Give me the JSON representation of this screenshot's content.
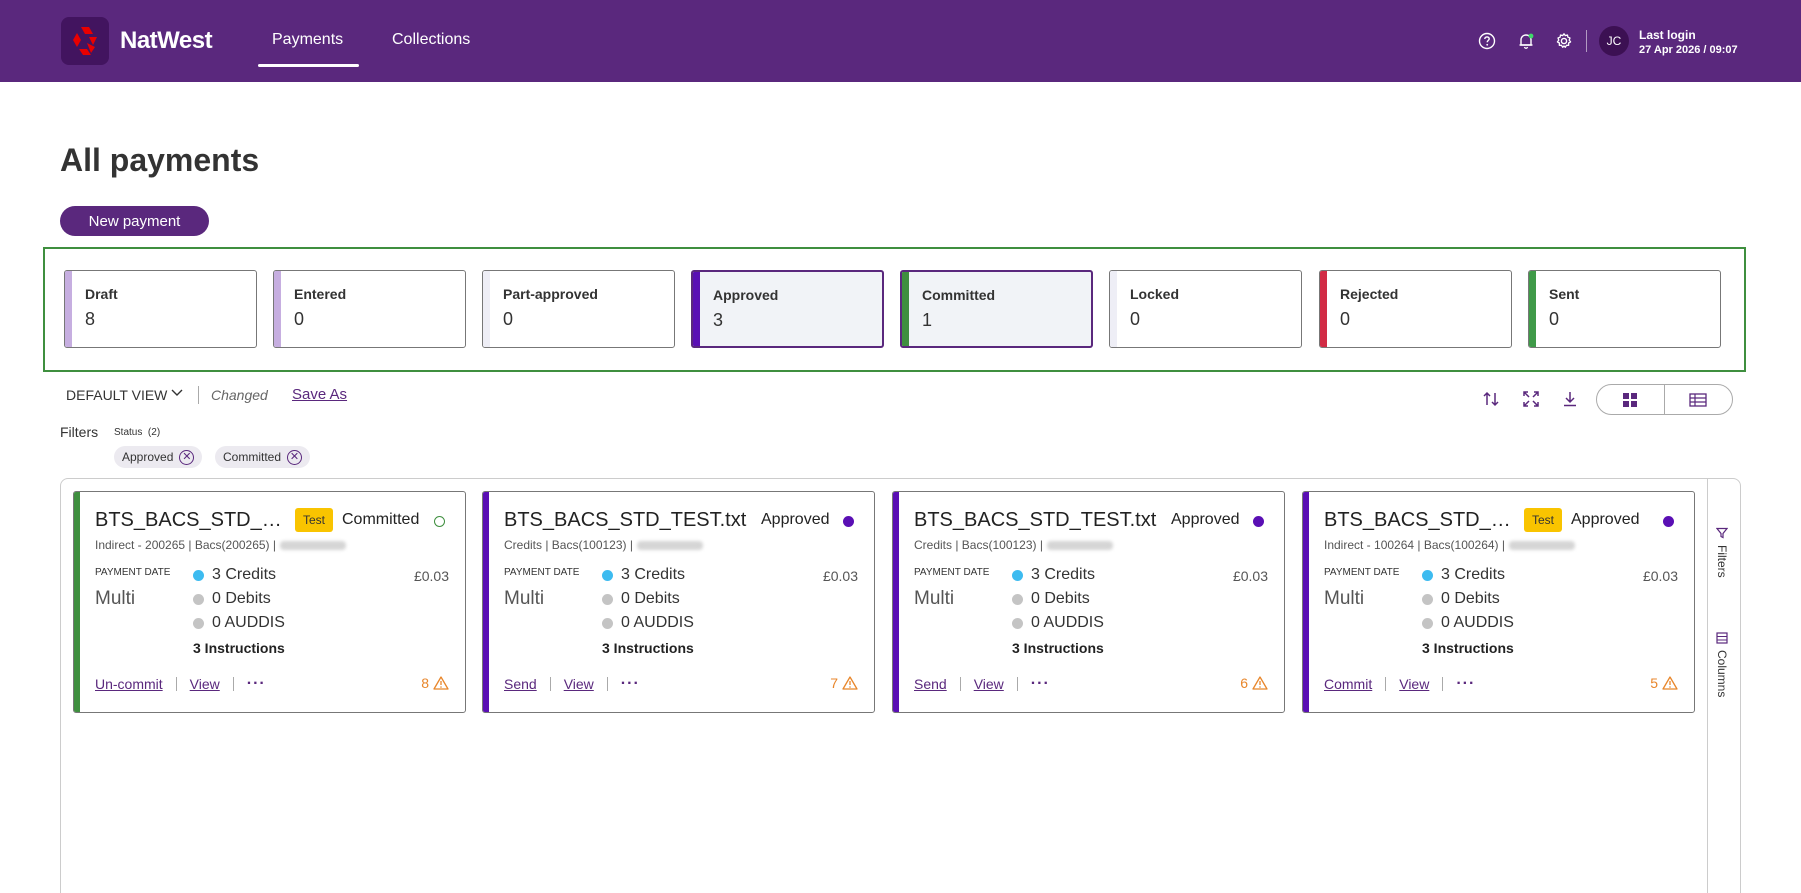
{
  "header": {
    "brand": "NatWest",
    "nav": [
      {
        "label": "Payments",
        "active": true
      },
      {
        "label": "Collections",
        "active": false
      }
    ],
    "icons": [
      "help-icon",
      "bell-icon",
      "gear-icon"
    ],
    "user_initials": "JC",
    "last_login_label": "Last login",
    "last_login_date": "27 Apr 2026 / 09:07",
    "bg_color": "#5a287d"
  },
  "page": {
    "title": "All payments",
    "new_payment_label": "New payment"
  },
  "status_cards": [
    {
      "label": "Draft",
      "count": "8",
      "color": "#c6aee0",
      "selected": false
    },
    {
      "label": "Entered",
      "count": "0",
      "color": "#c6aee0",
      "selected": false
    },
    {
      "label": "Part-approved",
      "count": "0",
      "color": "#eeeef6",
      "selected": false
    },
    {
      "label": "Approved",
      "count": "3",
      "color": "#5a0fb4",
      "selected": true
    },
    {
      "label": "Committed",
      "count": "1",
      "color": "#3f8f3f",
      "selected": true
    },
    {
      "label": "Locked",
      "count": "0",
      "color": "#eeeef6",
      "selected": false
    },
    {
      "label": "Rejected",
      "count": "0",
      "color": "#d12b45",
      "selected": false
    },
    {
      "label": "Sent",
      "count": "0",
      "color": "#3f9a48",
      "selected": false
    }
  ],
  "view": {
    "name": "DEFAULT VIEW",
    "changed": "Changed",
    "save_as": "Save As"
  },
  "filters": {
    "label": "Filters",
    "group_label": "Status",
    "group_count": "(2)",
    "chips": [
      "Approved",
      "Committed"
    ]
  },
  "side_panel": {
    "filters": "Filters",
    "columns": "Columns"
  },
  "payments": [
    {
      "name": "BTS_BACS_STD_T...",
      "test": "Test",
      "status": "Committed",
      "status_color": "#3f8f3f",
      "status_filled": false,
      "bar_color": "#3f8f3f",
      "sub": "Indirect - 200265 | Bacs(200265) |",
      "payment_date_label": "PAYMENT DATE",
      "payment_date": "Multi",
      "credits": "3 Credits",
      "debits": "0 Debits",
      "auddis": "0 AUDDIS",
      "amount": "£0.03",
      "instructions": "3 Instructions",
      "action": "Un-commit",
      "view": "View",
      "warnings": "8"
    },
    {
      "name": "BTS_BACS_STD_TEST.txt",
      "test": "",
      "status": "Approved",
      "status_color": "#5a0fb4",
      "status_filled": true,
      "bar_color": "#5a0fb4",
      "sub": "Credits | Bacs(100123) |",
      "payment_date_label": "PAYMENT DATE",
      "payment_date": "Multi",
      "credits": "3 Credits",
      "debits": "0 Debits",
      "auddis": "0 AUDDIS",
      "amount": "£0.03",
      "instructions": "3 Instructions",
      "action": "Send",
      "view": "View",
      "warnings": "7"
    },
    {
      "name": "BTS_BACS_STD_TEST.txt",
      "test": "",
      "status": "Approved",
      "status_color": "#5a0fb4",
      "status_filled": true,
      "bar_color": "#5a0fb4",
      "sub": "Credits | Bacs(100123) |",
      "payment_date_label": "PAYMENT DATE",
      "payment_date": "Multi",
      "credits": "3 Credits",
      "debits": "0 Debits",
      "auddis": "0 AUDDIS",
      "amount": "£0.03",
      "instructions": "3 Instructions",
      "action": "Send",
      "view": "View",
      "warnings": "6"
    },
    {
      "name": "BTS_BACS_STD_TE...",
      "test": "Test",
      "status": "Approved",
      "status_color": "#5a0fb4",
      "status_filled": true,
      "bar_color": "#5a0fb4",
      "sub": "Indirect - 100264 | Bacs(100264) |",
      "payment_date_label": "PAYMENT DATE",
      "payment_date": "Multi",
      "credits": "3 Credits",
      "debits": "0 Debits",
      "auddis": "0 AUDDIS",
      "amount": "£0.03",
      "instructions": "3 Instructions",
      "action": "Commit",
      "view": "View",
      "warnings": "5"
    }
  ],
  "colors": {
    "credit_dot": "#3dbbf0",
    "neutral_dot": "#c4c4c4",
    "warning": "#e8862b",
    "accent": "#5a287d"
  }
}
